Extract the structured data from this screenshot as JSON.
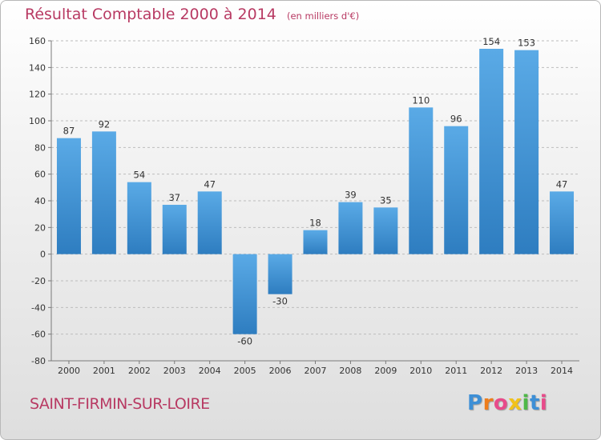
{
  "title": "Résultat Comptable 2000 à 2014",
  "unit": "(en milliers d'€)",
  "commune": "SAINT-FIRMIN-SUR-LOIRE",
  "logo": {
    "letters": [
      "P",
      "r",
      "o",
      "x",
      "i",
      "t",
      "i"
    ],
    "colors": [
      "#3d8fd6",
      "#ee7d1c",
      "#e84b8a",
      "#f1c21b",
      "#4fb848",
      "#3d8fd6",
      "#e84b8a"
    ]
  },
  "colors": {
    "title": "#b83a63",
    "bar_light": "#5aaae6",
    "bar_dark": "#2e7dc0",
    "grid": "#bdbdbd",
    "axis": "#7a7a7a"
  },
  "chart_data": {
    "type": "bar",
    "title": "Résultat Comptable 2000 à 2014",
    "subtitle": "(en milliers d'€)",
    "categories": [
      "2000",
      "2001",
      "2002",
      "2003",
      "2004",
      "2005",
      "2006",
      "2007",
      "2008",
      "2009",
      "2010",
      "2011",
      "2012",
      "2013",
      "2014"
    ],
    "values": [
      87,
      92,
      54,
      37,
      47,
      -60,
      -30,
      18,
      39,
      35,
      110,
      96,
      154,
      153,
      47
    ],
    "ylim": [
      -80,
      160
    ],
    "yticks": [
      -80,
      -60,
      -40,
      -20,
      0,
      20,
      40,
      60,
      80,
      100,
      120,
      140,
      160
    ],
    "xlabel": "",
    "ylabel": "",
    "grid": "horizontal dashed"
  }
}
